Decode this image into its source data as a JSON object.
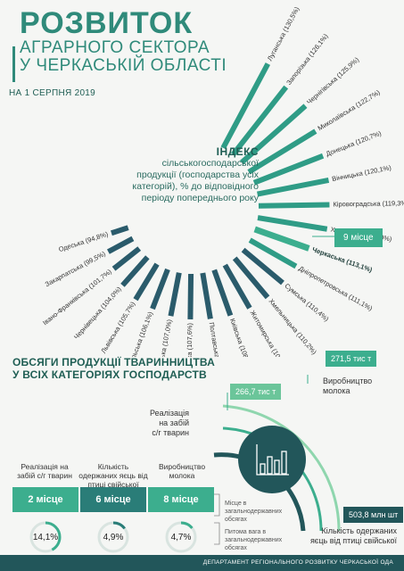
{
  "header": {
    "title_big": "РОЗВИТОК",
    "title_line2": "АГРАРНОГО СЕКТОРА",
    "title_line3": "У ЧЕРКАСЬКІЙ ОБЛАСТІ",
    "date": "НА 1 СЕРПНЯ 2019"
  },
  "index_block": {
    "title": "ІНДЕКС",
    "text": "сільськогосподарської продукції (господарства усіх категорій), % до відповідного періоду попереднього року",
    "rank": "9 місце"
  },
  "chart_data": [
    {
      "type": "bar",
      "categories": [
        "Луганська",
        "Запорізька",
        "Чернігівська",
        "Миколаївська",
        "Донецька",
        "Вінницька",
        "Кіровоградська",
        "Харківська",
        "Черкаська",
        "Дніпропетровська",
        "Сумська",
        "Хмельницька",
        "Житомирська",
        "Київська",
        "Полтавська",
        "Херсонська",
        "Волинська",
        "Тернопільська",
        "Львівська",
        "Чернівецька",
        "Івано-Франківська",
        "Закарпатська",
        "Одеська"
      ],
      "labels": [
        "Луганська (130,5%)",
        "Запорізька (126,1%)",
        "Чернігівська (125,9%)",
        "Миколаївська (122,7%)",
        "Донецька (120,7%)",
        "Вінницька (120,1%)",
        "Кіровоградська (119,3%)",
        "Харківська (119,0%)",
        "Черкаська (113,1%)",
        "Дніпропетровська (111,1%)",
        "Сумська (110,4%)",
        "Хмельницька (110,2%)",
        "Житомирська (109,5%)",
        "Київська (108,9%)",
        "Полтавська (108,1%)",
        "Херсонська (107,6%)",
        "Волинська (107,0%)",
        "Тернопільська (106,1%)",
        "Львівська (105,7%)",
        "Чернівецька (104,0%)",
        "Івано-Франківська (101,7%)",
        "Закарпатська (99,5%)",
        "Одеська (94,8%)"
      ],
      "values": [
        130.5,
        126.1,
        125.9,
        122.7,
        120.7,
        120.1,
        119.3,
        119.0,
        113.1,
        111.1,
        110.4,
        110.2,
        109.5,
        108.9,
        108.1,
        107.6,
        107.0,
        106.1,
        105.7,
        104.0,
        101.7,
        99.5,
        94.8
      ],
      "highlight": "Черкаська"
    },
    {
      "type": "bar",
      "title": "ОБСЯГИ ПРОДУКЦІЇ ТВАРИННИЦТВА У ВСІХ КАТЕГОРІЯХ ГОСПОДАРСТВ",
      "categories": [
        "Реалізація на забій с/г тварин",
        "Виробництво молока",
        "Кількість одержаних яєць від птиці свійської"
      ],
      "labels": [
        "266,7 тис т",
        "271,5 тис т",
        "503,8 млн шт"
      ],
      "values": [
        266.7,
        271.5,
        503.8
      ]
    }
  ],
  "section2": {
    "title_line1": "ОБСЯГИ ПРОДУКЦІЇ ТВАРИННИЦТВА",
    "title_line2": "У ВСІХ КАТЕГОРІЯХ ГОСПОДАРСТВ",
    "meat_label_1": "Реалізація",
    "meat_label_2": "на забій",
    "meat_label_3": "с/г тварин",
    "meat_value": "266,7 тис т",
    "milk_label_1": "Виробництво",
    "milk_label_2": "молока",
    "milk_value": "271,5 тис т",
    "eggs_label_1": "Кількість одержаних",
    "eggs_label_2": "яєць від птиці свійської",
    "eggs_value": "503,8 млн шт",
    "col1_hdr": "Реалізація на забій с/г тварин",
    "col2_hdr": "Кількість одержаних яєць від птиці свійської",
    "col3_hdr": "Виробництво молока",
    "col1_place": "2 місце",
    "col2_place": "6 місце",
    "col3_place": "8 місце",
    "col1_share": "14,1%",
    "col2_share": "4,9%",
    "col3_share": "4,7%",
    "col1_share_value": 14.1,
    "col2_share_value": 4.9,
    "col3_share_value": 4.7,
    "note_place": "Місце в загальнодержавних обсягах",
    "note_share": "Питома вага в загальнодержавних обсягах"
  },
  "footer": {
    "text": "ДЕПАРТАМЕНТ РЕГІОНАЛЬНОГО РОЗВИТКУ ЧЕРКАСЬКОЇ ОДА"
  },
  "colors": {
    "accent": "#2f8a7a",
    "bright": "#3cae8e",
    "dark": "#22565a",
    "bar_top": "#1f8c7a",
    "bar_bottom": "#2a5b6b"
  }
}
